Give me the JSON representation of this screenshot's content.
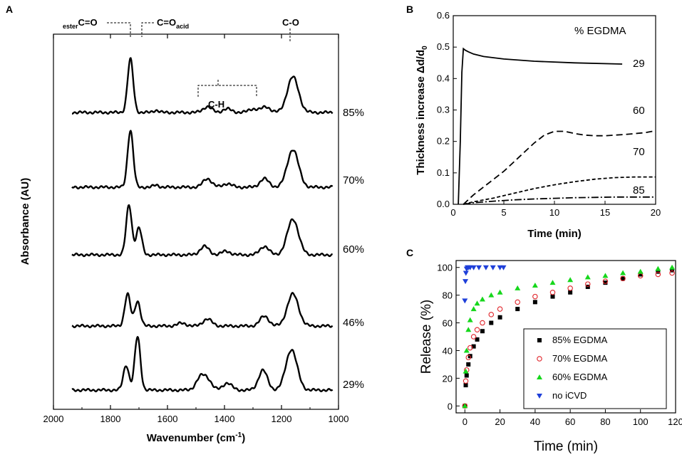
{
  "chart_data": [
    {
      "panel": "A",
      "type": "line",
      "xlabel": "Wavenumber (cm",
      "xlabel_sup": "-1",
      "xlabel_end": ")",
      "ylabel": "Absorbance (AU)",
      "xlim": [
        2000,
        1000
      ],
      "x_ticks": [
        "2000",
        "1800",
        "1600",
        "1400",
        "1200",
        "1000"
      ],
      "peak_labels": {
        "ester": {
          "sub": "ester",
          "main": "C=O"
        },
        "acid": {
          "main": "C=O",
          "sub": "acid"
        },
        "ch": {
          "main": "C-H"
        },
        "co": {
          "main": "C-O"
        }
      },
      "series": [
        {
          "name": "85%",
          "peaks": [
            [
              1730,
              75
            ],
            [
              1640,
              3
            ],
            [
              1460,
              8
            ],
            [
              1390,
              5
            ],
            [
              1300,
              5
            ],
            [
              1255,
              8
            ],
            [
              1160,
              50
            ]
          ]
        },
        {
          "name": "70%",
          "peaks": [
            [
              1730,
              80
            ],
            [
              1640,
              3
            ],
            [
              1460,
              12
            ],
            [
              1390,
              5
            ],
            [
              1260,
              12
            ],
            [
              1160,
              53
            ]
          ]
        },
        {
          "name": "60%",
          "peaks": [
            [
              1735,
              70
            ],
            [
              1700,
              38
            ],
            [
              1470,
              12
            ],
            [
              1395,
              5
            ],
            [
              1260,
              12
            ],
            [
              1160,
              50
            ]
          ]
        },
        {
          "name": "46%",
          "peaks": [
            [
              1740,
              45
            ],
            [
              1705,
              35
            ],
            [
              1550,
              4
            ],
            [
              1460,
              10
            ],
            [
              1260,
              14
            ],
            [
              1160,
              45
            ]
          ]
        },
        {
          "name": "29%",
          "peaks": [
            [
              1745,
              35
            ],
            [
              1705,
              75
            ],
            [
              1485,
              16
            ],
            [
              1460,
              14
            ],
            [
              1390,
              10
            ],
            [
              1265,
              28
            ],
            [
              1165,
              57
            ]
          ]
        }
      ]
    },
    {
      "panel": "B",
      "type": "line",
      "xlabel": "Time (min)",
      "ylabel": "Thickness increase Δd/d",
      "ylabel_sub": "0",
      "xlim": [
        0,
        20
      ],
      "ylim": [
        0,
        0.6
      ],
      "x_ticks": [
        "0",
        "5",
        "10",
        "15",
        "20"
      ],
      "y_ticks": [
        "0.0",
        "0.1",
        "0.2",
        "0.3",
        "0.4",
        "0.5",
        "0.6"
      ],
      "legend_title": "% EGDMA",
      "series": [
        {
          "name": "29",
          "style": "solid",
          "x": [
            0.5,
            0.7,
            0.85,
            1.0,
            1.2,
            1.5,
            2,
            3,
            5,
            8,
            12,
            16.7
          ],
          "y": [
            0,
            0.2,
            0.42,
            0.495,
            0.49,
            0.485,
            0.478,
            0.47,
            0.462,
            0.455,
            0.45,
            0.446
          ]
        },
        {
          "name": "60",
          "style": "dashed",
          "x": [
            1,
            2,
            3,
            4,
            5,
            6,
            7,
            8,
            9,
            10,
            11,
            12,
            13,
            14,
            15,
            16,
            17,
            18,
            19,
            20
          ],
          "y": [
            0,
            0.03,
            0.055,
            0.08,
            0.105,
            0.135,
            0.165,
            0.195,
            0.22,
            0.232,
            0.232,
            0.225,
            0.22,
            0.218,
            0.218,
            0.22,
            0.222,
            0.225,
            0.228,
            0.234
          ]
        },
        {
          "name": "70",
          "style": "short-dash",
          "x": [
            1,
            2,
            4,
            6,
            8,
            10,
            12,
            14,
            16,
            18,
            20
          ],
          "y": [
            0,
            0.008,
            0.02,
            0.035,
            0.05,
            0.062,
            0.072,
            0.08,
            0.085,
            0.087,
            0.087
          ]
        },
        {
          "name": "85",
          "style": "dash-dot",
          "x": [
            1,
            2,
            4,
            6,
            8,
            10,
            12,
            14,
            16,
            18,
            20
          ],
          "y": [
            0,
            0.005,
            0.01,
            0.014,
            0.017,
            0.019,
            0.021,
            0.022,
            0.023,
            0.023,
            0.023
          ]
        }
      ]
    },
    {
      "panel": "C",
      "type": "scatter",
      "xlabel": "Time (min)",
      "ylabel": "Release (%)",
      "xlim": [
        -5,
        120
      ],
      "ylim": [
        -5,
        105
      ],
      "x_ticks": [
        "0",
        "20",
        "40",
        "60",
        "80",
        "100",
        "120"
      ],
      "y_ticks": [
        "0",
        "20",
        "40",
        "60",
        "80",
        "100"
      ],
      "series": [
        {
          "name": "85% EGDMA",
          "marker": "square",
          "color": "#000000",
          "x": [
            0,
            0.5,
            1,
            2,
            3,
            5,
            7,
            10,
            15,
            20,
            30,
            40,
            50,
            60,
            70,
            80,
            90,
            100,
            110,
            118
          ],
          "y": [
            0,
            15,
            22,
            30,
            36,
            43,
            48,
            54,
            60,
            64,
            70,
            75,
            79,
            82,
            86,
            89,
            92,
            95,
            97,
            98
          ]
        },
        {
          "name": "70% EGDMA",
          "marker": "open-circle",
          "color": "#e0242a",
          "x": [
            0,
            0.5,
            1,
            2,
            3,
            5,
            7,
            10,
            15,
            20,
            30,
            40,
            50,
            60,
            70,
            80,
            90,
            100,
            110,
            118
          ],
          "y": [
            0,
            18,
            26,
            35,
            42,
            50,
            55,
            60,
            66,
            70,
            75,
            79,
            82,
            85,
            88,
            90,
            92,
            94,
            95,
            96
          ]
        },
        {
          "name": "60% EGDMA",
          "marker": "triangle-up",
          "color": "#16d71c",
          "x": [
            0,
            0.5,
            1,
            2,
            3,
            5,
            7,
            10,
            15,
            20,
            30,
            40,
            50,
            60,
            70,
            80,
            90,
            100,
            110,
            118
          ],
          "y": [
            0,
            25,
            40,
            55,
            62,
            70,
            74,
            77,
            80,
            82,
            85,
            87,
            89,
            91,
            93,
            94,
            96,
            97,
            99,
            100
          ]
        },
        {
          "name": "no iCVD",
          "marker": "triangle-down",
          "color": "#1e3fd9",
          "x": [
            0,
            0.3,
            0.6,
            1,
            1.5,
            2,
            3,
            5,
            8,
            12,
            16,
            20,
            22
          ],
          "y": [
            76,
            90,
            96,
            99,
            100,
            100,
            100,
            100,
            100,
            100,
            100,
            100,
            100
          ]
        }
      ]
    }
  ]
}
